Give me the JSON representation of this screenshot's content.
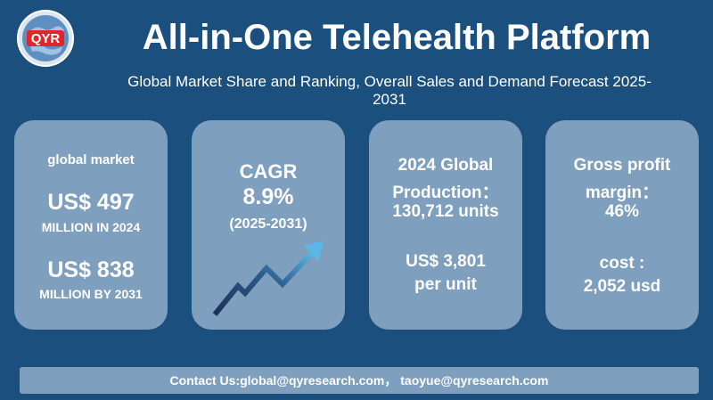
{
  "header": {
    "logo_text": "QYR",
    "title": "All-in-One Telehealth Platform",
    "subtitle_line1": "Global Market Share and Ranking, Overall Sales and Demand Forecast 2025-",
    "subtitle_line2": "2031"
  },
  "cards": {
    "market": {
      "heading": "global market",
      "value_2024": "US$ 497",
      "label_2024": "MILLION IN 2024",
      "value_2031": "US$ 838",
      "label_2031": "MILLION BY 2031"
    },
    "cagr": {
      "heading": "CAGR",
      "value": "8.9%",
      "period": "(2025-2031)"
    },
    "production": {
      "line1": "2024 Global",
      "line2": "Production：",
      "line3": "130,712 units",
      "price_line1": "US$ 3,801",
      "price_line2": "per unit"
    },
    "margin": {
      "line1": "Gross profit",
      "line2": "margin：",
      "value": "46%",
      "cost_label": "cost :",
      "cost_value": "2,052 usd"
    }
  },
  "footer": {
    "contact": "Contact Us:global@qyresearch.com， taoyue@qyresearch.com"
  },
  "colors": {
    "background": "#1b4f7d",
    "card": "#7e9fbd",
    "logo_red": "#e0262c",
    "arrow_dark": "#1d2f55",
    "arrow_light": "#5ab8e8"
  }
}
